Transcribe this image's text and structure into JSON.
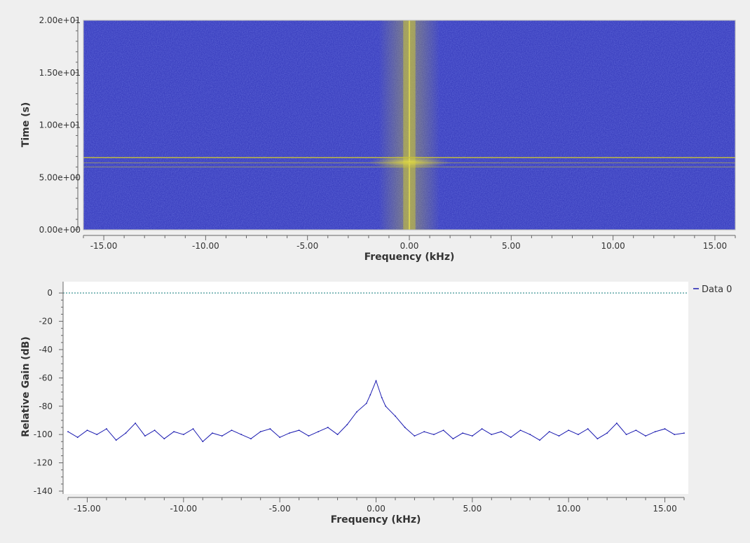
{
  "chart_data": [
    {
      "type": "heatmap",
      "xlabel": "Frequency (kHz)",
      "ylabel": "Time (s)",
      "xlim": [
        -16,
        16
      ],
      "ylim": [
        0,
        20
      ],
      "x_ticks": [
        -15,
        -10,
        -5,
        0,
        5,
        10,
        15
      ],
      "x_tick_labels": [
        "-15.00",
        "-10.00",
        "-5.00",
        "0.00",
        "5.00",
        "10.00",
        "15.00"
      ],
      "y_ticks": [
        0,
        5,
        10,
        15,
        20
      ],
      "y_tick_labels": [
        "0.00e+00",
        "5.00e+00",
        "1.00e+01",
        "1.50e+01",
        "2.00e+01"
      ],
      "colors": {
        "background": "#3a3fbf",
        "signal": "#c8c23a"
      },
      "features": {
        "vertical_band_khz": [
          -0.3,
          0.3
        ],
        "vertical_glow_khz": [
          -1.5,
          1.5
        ],
        "horizontal_lines_s": [
          6.0,
          6.4,
          6.9
        ]
      }
    },
    {
      "type": "line",
      "xlabel": "Frequency (kHz)",
      "ylabel": "Relative Gain (dB)",
      "xlim": [
        -16,
        16
      ],
      "ylim": [
        -142,
        8
      ],
      "x_ticks": [
        -15,
        -10,
        -5,
        0,
        5,
        10,
        15
      ],
      "x_tick_labels": [
        "-15.00",
        "-10.00",
        "-5.00",
        "0.00",
        "5.00",
        "10.00",
        "15.00"
      ],
      "y_ticks": [
        0,
        -20,
        -40,
        -60,
        -80,
        -100,
        -120,
        -140
      ],
      "y_tick_labels": [
        "0",
        "-20",
        "-40",
        "-60",
        "-80",
        "-100",
        "-120",
        "-140"
      ],
      "reference_line_db": 0,
      "legend": "top-right",
      "colors": {
        "series": "#1a1ab0",
        "reference": "#0f7a7a"
      },
      "series": [
        {
          "name": "Data 0",
          "x": [
            -16,
            -15.5,
            -15,
            -14.5,
            -14,
            -13.5,
            -13,
            -12.5,
            -12,
            -11.5,
            -11,
            -10.5,
            -10,
            -9.5,
            -9,
            -8.5,
            -8,
            -7.5,
            -7,
            -6.5,
            -6,
            -5.5,
            -5,
            -4.5,
            -4,
            -3.5,
            -3,
            -2.5,
            -2,
            -1.5,
            -1,
            -0.5,
            -0.3,
            0,
            0.3,
            0.5,
            1,
            1.5,
            2,
            2.5,
            3,
            3.5,
            4,
            4.5,
            5,
            5.5,
            6,
            6.5,
            7,
            7.5,
            8,
            8.5,
            9,
            9.5,
            10,
            10.5,
            11,
            11.5,
            12,
            12.5,
            13,
            13.5,
            14,
            14.5,
            15,
            15.5,
            16
          ],
          "values": [
            -98,
            -102,
            -97,
            -100,
            -96,
            -104,
            -99,
            -92,
            -101,
            -97,
            -103,
            -98,
            -100,
            -96,
            -105,
            -99,
            -101,
            -97,
            -100,
            -103,
            -98,
            -96,
            -102,
            -99,
            -97,
            -101,
            -98,
            -95,
            -100,
            -93,
            -84,
            -78,
            -72,
            -62,
            -74,
            -80,
            -87,
            -95,
            -101,
            -98,
            -100,
            -97,
            -103,
            -99,
            -101,
            -96,
            -100,
            -98,
            -102,
            -97,
            -100,
            -104,
            -98,
            -101,
            -97,
            -100,
            -96,
            -103,
            -99,
            -92,
            -100,
            -97,
            -101,
            -98,
            -96,
            -100,
            -99
          ]
        }
      ]
    }
  ]
}
